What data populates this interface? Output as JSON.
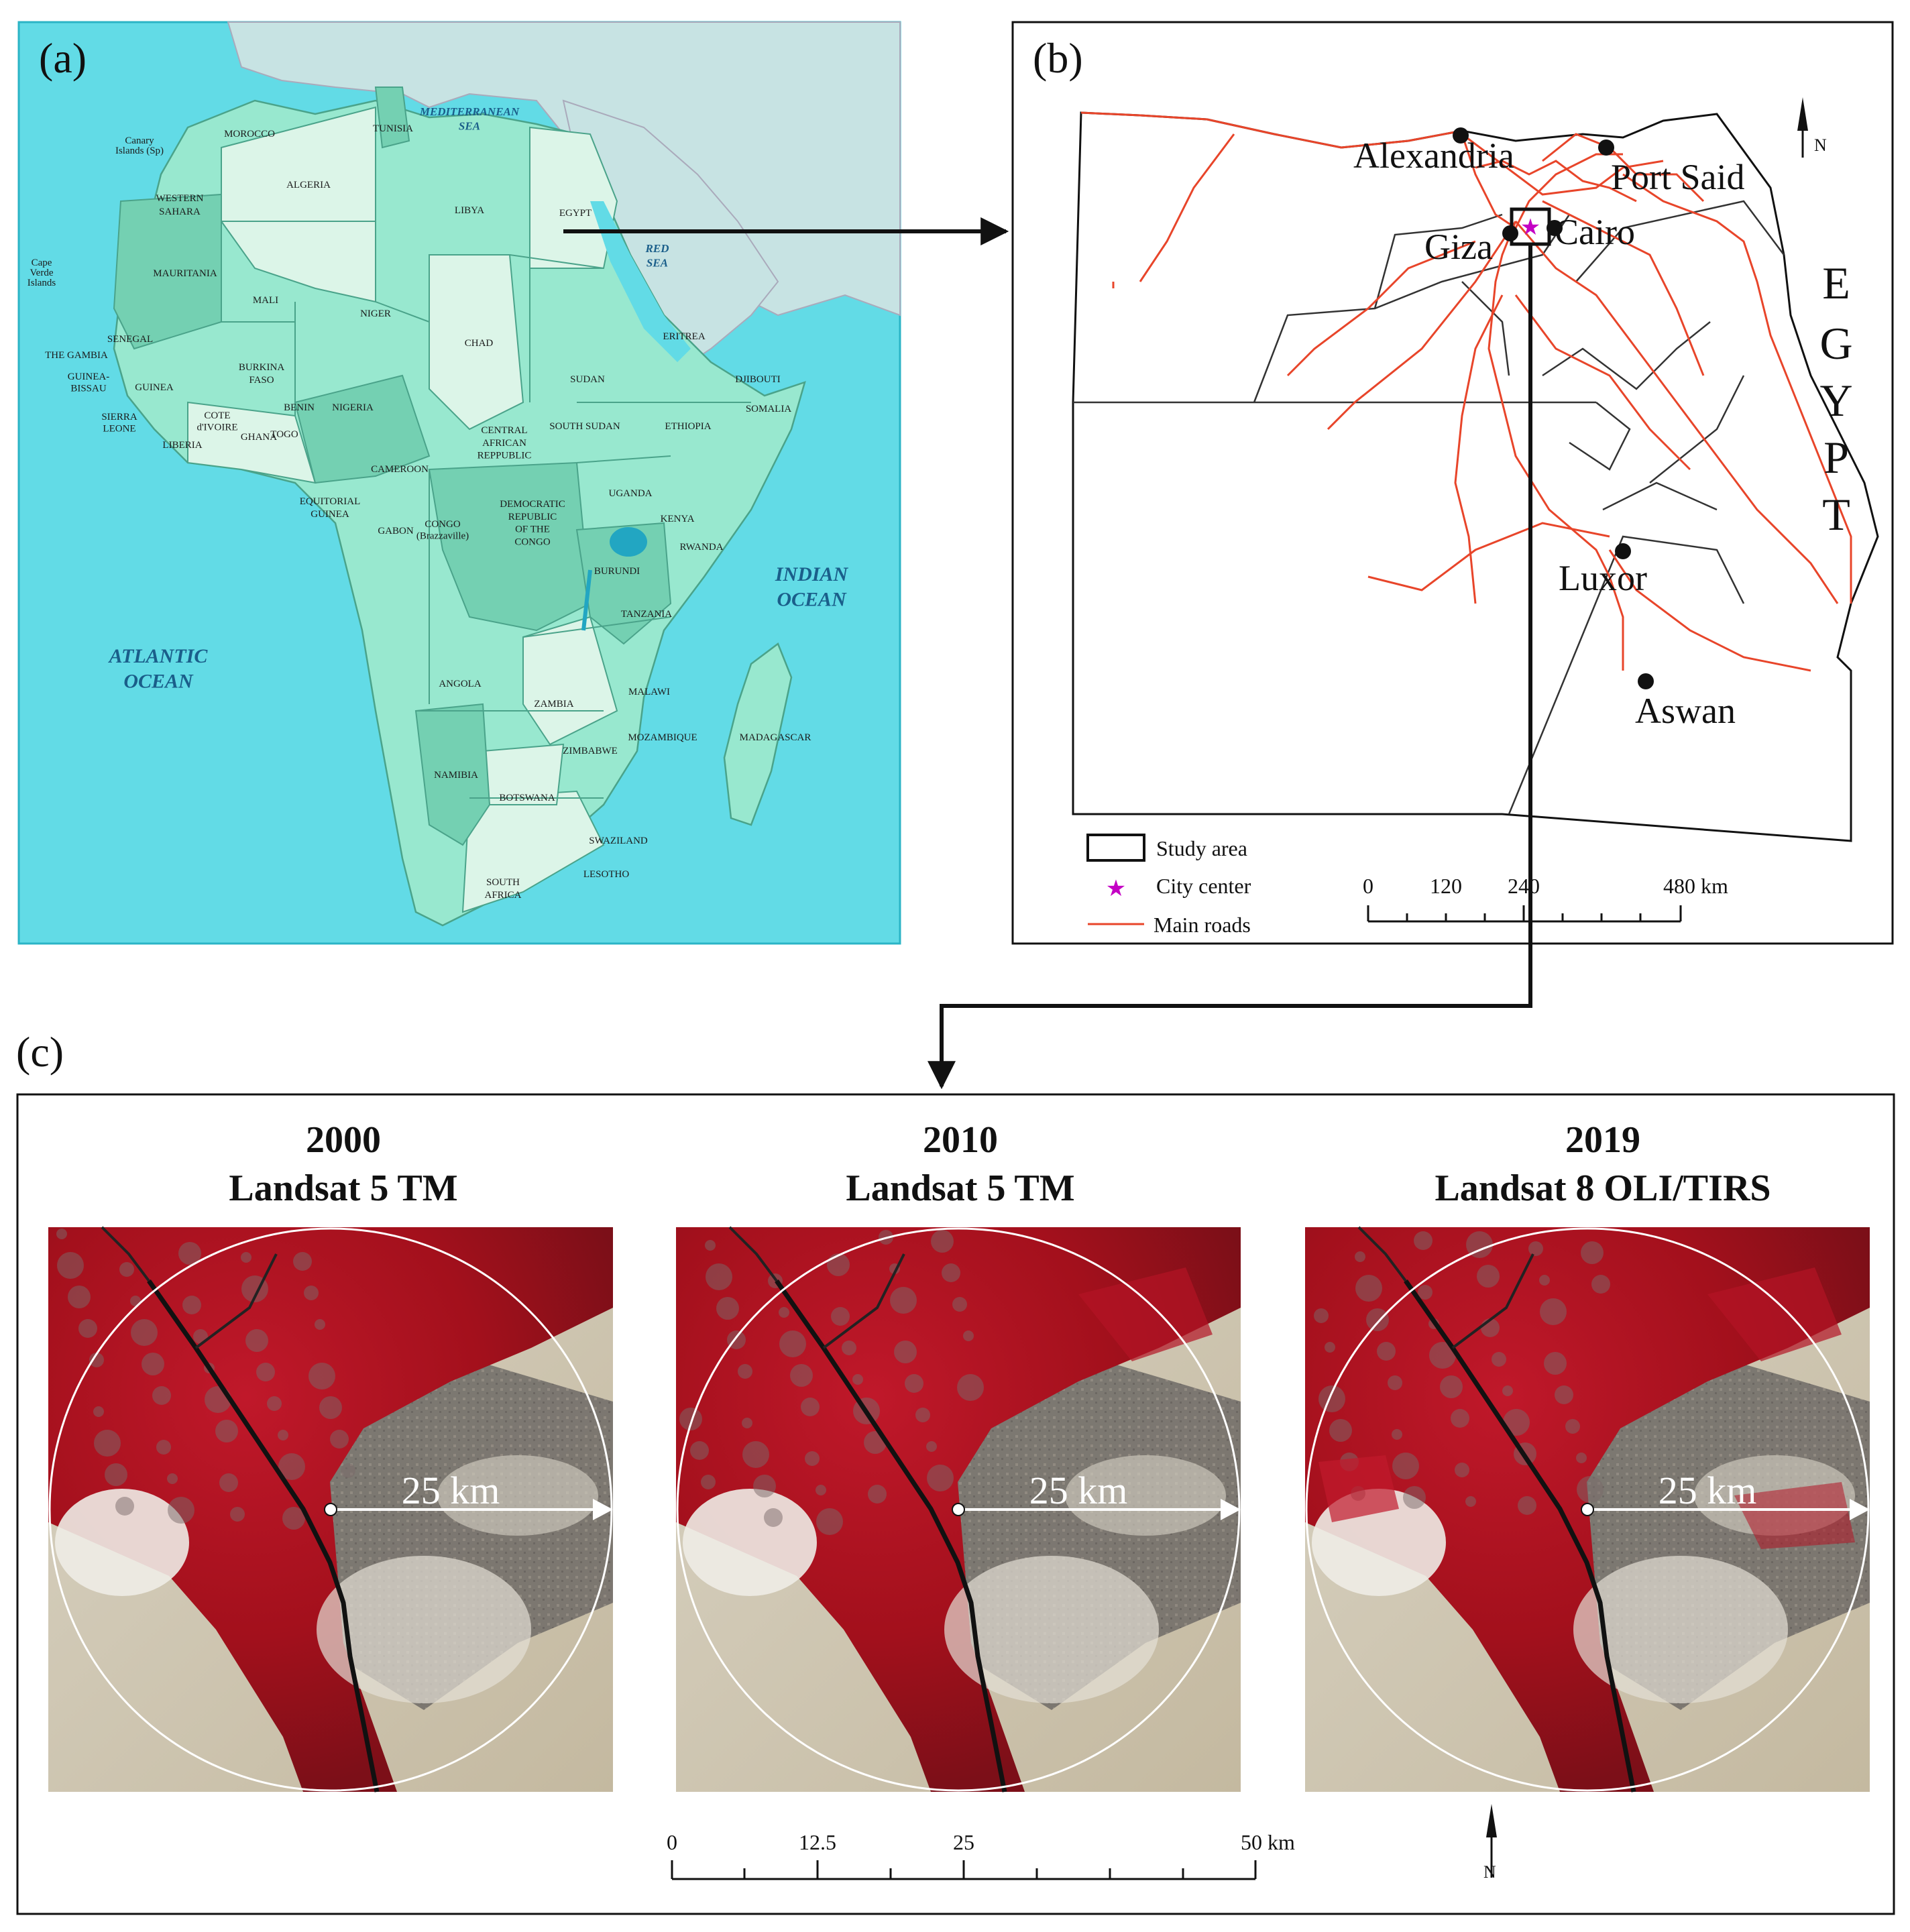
{
  "panels": {
    "a": {
      "label": "(a)"
    },
    "b": {
      "label": "(b)"
    },
    "c": {
      "label": "(c)"
    }
  },
  "africa_map": {
    "oceans": [
      {
        "id": "mediterranean",
        "lines": [
          "MEDITERRANEAN",
          "SEA"
        ]
      },
      {
        "id": "red-sea",
        "lines": [
          "RED",
          "SEA"
        ]
      },
      {
        "id": "atlantic",
        "lines": [
          "ATLANTIC",
          "OCEAN"
        ]
      },
      {
        "id": "indian",
        "lines": [
          "INDIAN",
          "OCEAN"
        ]
      }
    ],
    "countries": [
      {
        "id": "canary",
        "lines": [
          "Canary",
          "Islands (Sp)"
        ]
      },
      {
        "id": "morocco",
        "lines": [
          "MOROCCO"
        ]
      },
      {
        "id": "tunisia",
        "lines": [
          "TUNISIA"
        ]
      },
      {
        "id": "algeria",
        "lines": [
          "ALGERIA"
        ]
      },
      {
        "id": "libya",
        "lines": [
          "LIBYA"
        ]
      },
      {
        "id": "egypt",
        "lines": [
          "EGYPT"
        ]
      },
      {
        "id": "western-sahara",
        "lines": [
          "WESTERN",
          "SAHARA"
        ]
      },
      {
        "id": "cape-verde",
        "lines": [
          "Cape",
          "Verde",
          "Islands"
        ]
      },
      {
        "id": "mauritania",
        "lines": [
          "MAURITANIA"
        ]
      },
      {
        "id": "mali",
        "lines": [
          "MALI"
        ]
      },
      {
        "id": "niger",
        "lines": [
          "NIGER"
        ]
      },
      {
        "id": "chad",
        "lines": [
          "CHAD"
        ]
      },
      {
        "id": "sudan",
        "lines": [
          "SUDAN"
        ]
      },
      {
        "id": "eritrea",
        "lines": [
          "ERITREA"
        ]
      },
      {
        "id": "djibouti",
        "lines": [
          "DJIBOUTI"
        ]
      },
      {
        "id": "senegal",
        "lines": [
          "SENEGAL"
        ]
      },
      {
        "id": "gambia",
        "lines": [
          "THE GAMBIA"
        ]
      },
      {
        "id": "guinea-bissau",
        "lines": [
          "GUINEA-",
          "BISSAU"
        ]
      },
      {
        "id": "guinea",
        "lines": [
          "GUINEA"
        ]
      },
      {
        "id": "burkina",
        "lines": [
          "BURKINA",
          "FASO"
        ]
      },
      {
        "id": "nigeria",
        "lines": [
          "NIGERIA"
        ]
      },
      {
        "id": "sierra-leone",
        "lines": [
          "SIERRA",
          "LEONE"
        ]
      },
      {
        "id": "liberia",
        "lines": [
          "LIBERIA"
        ]
      },
      {
        "id": "cote-divoire",
        "lines": [
          "COTE",
          "d'IVOIRE"
        ]
      },
      {
        "id": "ghana",
        "lines": [
          "GHANA"
        ]
      },
      {
        "id": "togo",
        "lines": [
          "TOGO"
        ]
      },
      {
        "id": "benin",
        "lines": [
          "BENIN"
        ]
      },
      {
        "id": "south-sudan",
        "lines": [
          "SOUTH SUDAN"
        ]
      },
      {
        "id": "ethiopia",
        "lines": [
          "ETHIOPIA"
        ]
      },
      {
        "id": "somalia",
        "lines": [
          "SOMALIA"
        ]
      },
      {
        "id": "car",
        "lines": [
          "CENTRAL",
          "AFRICAN",
          "REPPUBLIC"
        ]
      },
      {
        "id": "cameroon",
        "lines": [
          "CAMEROON"
        ]
      },
      {
        "id": "eq-guinea",
        "lines": [
          "EQUITORIAL",
          "GUINEA"
        ]
      },
      {
        "id": "gabon",
        "lines": [
          "GABON"
        ]
      },
      {
        "id": "congo",
        "lines": [
          "CONGO",
          "(Brazzaville)"
        ]
      },
      {
        "id": "drc",
        "lines": [
          "DEMOCRATIC",
          "REPUBLIC",
          "OF THE",
          "CONGO"
        ]
      },
      {
        "id": "uganda",
        "lines": [
          "UGANDA"
        ]
      },
      {
        "id": "kenya",
        "lines": [
          "KENYA"
        ]
      },
      {
        "id": "rwanda",
        "lines": [
          "RWANDA"
        ]
      },
      {
        "id": "burundi",
        "lines": [
          "BURUNDI"
        ]
      },
      {
        "id": "tanzania",
        "lines": [
          "TANZANIA"
        ]
      },
      {
        "id": "angola",
        "lines": [
          "ANGOLA"
        ]
      },
      {
        "id": "zambia",
        "lines": [
          "ZAMBIA"
        ]
      },
      {
        "id": "malawi",
        "lines": [
          "MALAWI"
        ]
      },
      {
        "id": "mozambique",
        "lines": [
          "MOZAMBIQUE"
        ]
      },
      {
        "id": "madagascar",
        "lines": [
          "MADAGASCAR"
        ]
      },
      {
        "id": "zimbabwe",
        "lines": [
          "ZIMBABWE"
        ]
      },
      {
        "id": "namibia",
        "lines": [
          "NAMIBIA"
        ]
      },
      {
        "id": "botswana",
        "lines": [
          "BOTSWANA"
        ]
      },
      {
        "id": "swaziland",
        "lines": [
          "SWAZILAND"
        ]
      },
      {
        "id": "lesotho",
        "lines": [
          "LESOTHO"
        ]
      },
      {
        "id": "south-africa",
        "lines": [
          "SOUTH",
          "AFRICA"
        ]
      }
    ]
  },
  "egypt_map": {
    "cities": [
      {
        "id": "alexandria",
        "name": "Alexandria"
      },
      {
        "id": "port-said",
        "name": "Port Said"
      },
      {
        "id": "giza",
        "name": "Giza"
      },
      {
        "id": "cairo",
        "name": "Cairo"
      },
      {
        "id": "luxor",
        "name": "Luxor"
      },
      {
        "id": "aswan",
        "name": "Aswan"
      }
    ],
    "country_letters": [
      "E",
      "G",
      "Y",
      "P",
      "T"
    ],
    "legend": {
      "study_area": "Study area",
      "city_center": "City center",
      "main_roads": "Main roads"
    },
    "scale": {
      "ticks": [
        "0",
        "120",
        "240",
        "480 km"
      ]
    },
    "north_label": "N"
  },
  "images": {
    "panels": [
      {
        "year": "2000",
        "sensor": "Landsat 5 TM",
        "radius_label": "25 km"
      },
      {
        "year": "2010",
        "sensor": "Landsat 5 TM",
        "radius_label": "25 km"
      },
      {
        "year": "2019",
        "sensor": "Landsat 8 OLI/TIRS",
        "radius_label": "25 km"
      }
    ],
    "scale": {
      "ticks": [
        "0",
        "12.5",
        "25",
        "50 km"
      ]
    },
    "north_label": "N"
  },
  "colors": {
    "ocean": "#62dbe6",
    "land_light": "#dcf5e8",
    "land_mid": "#98e8cf",
    "land_dark": "#74d0b2",
    "roads": "#e8452a",
    "vegetation_red": "#a3101c",
    "desert": "#cfc8b6",
    "city_center": "#c400c4"
  }
}
